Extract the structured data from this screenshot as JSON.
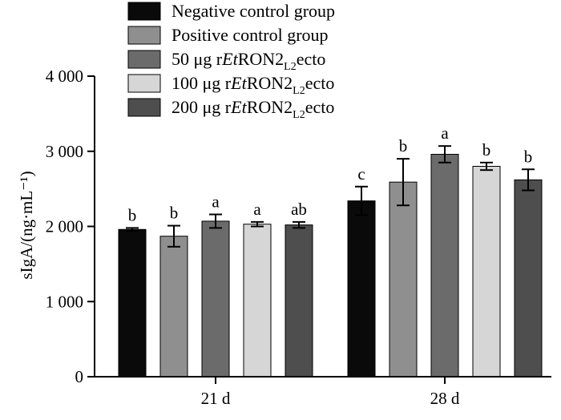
{
  "chart_data": {
    "type": "bar",
    "ylabel": "sIgA/(ng·mL⁻¹)",
    "ylim": [
      0,
      4000
    ],
    "yticks": [
      0,
      1000,
      2000,
      3000,
      4000
    ],
    "ytick_labels": [
      "0",
      "1 000",
      "2 000",
      "3 000",
      "4 000"
    ],
    "categories": [
      "21 d",
      "28 d"
    ],
    "series": [
      {
        "name": "Negative control group",
        "legend": {
          "pre": "Negative control group",
          "italic": "",
          "post": "",
          "sub": "",
          "tail": ""
        },
        "color": "#0a0a0a",
        "values": [
          1960,
          2340
        ],
        "errors": [
          20,
          190
        ],
        "letters": [
          "b",
          "c"
        ]
      },
      {
        "name": "Positive control group",
        "legend": {
          "pre": "Positive control group",
          "italic": "",
          "post": "",
          "sub": "",
          "tail": ""
        },
        "color": "#8f8f8f",
        "values": [
          1870,
          2590
        ],
        "errors": [
          140,
          310
        ],
        "letters": [
          "b",
          "b"
        ]
      },
      {
        "name": "50 μg rEtRON2L2ecto",
        "legend": {
          "pre": "50 μg r",
          "italic": "Et",
          "post": "RON2",
          "sub": "L2",
          "tail": "ecto"
        },
        "color": "#6b6b6b",
        "values": [
          2070,
          2960
        ],
        "errors": [
          90,
          110
        ],
        "letters": [
          "a",
          "a"
        ]
      },
      {
        "name": "100 μg rEtRON2L2ecto",
        "legend": {
          "pre": "100 μg r",
          "italic": "Et",
          "post": "RON2",
          "sub": "L2",
          "tail": "ecto"
        },
        "color": "#d6d6d6",
        "values": [
          2030,
          2800
        ],
        "errors": [
          30,
          50
        ],
        "letters": [
          "a",
          "b"
        ]
      },
      {
        "name": "200 μg rEtRON2L2ecto",
        "legend": {
          "pre": "200 μg r",
          "italic": "Et",
          "post": "RON2",
          "sub": "L2",
          "tail": "ecto"
        },
        "color": "#4e4e4e",
        "values": [
          2020,
          2620
        ],
        "errors": [
          40,
          140
        ],
        "letters": [
          "ab",
          "b"
        ]
      }
    ],
    "legend_position": "top-center"
  }
}
